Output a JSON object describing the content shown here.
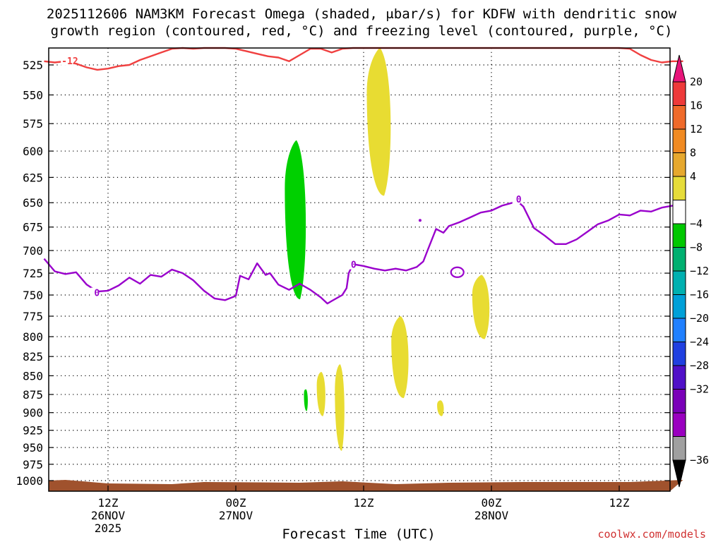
{
  "title_line1": "2025112606 NAM3KM Forecast Omega (shaded, μbar/s) for KDFW with dendritic snow",
  "title_line2": "growth region (contoured, red, °C) and freezing level (contoured, purple, °C)",
  "xlabel": "Forecast Time (UTC)",
  "credit": "coolwx.com/models",
  "chart_data": {
    "type": "area",
    "title": "2025112606 NAM3KM Forecast Omega (shaded, μbar/s) for KDFW with dendritic snow growth region (contoured, red, °C) and freezing level (contoured, purple, °C)",
    "xlabel": "Forecast Time (UTC)",
    "ylabel": "",
    "x_unit": "hours since 2025-11-26 06Z (forecast time)",
    "xlim": [
      0,
      60
    ],
    "ylim": [
      1000,
      500
    ],
    "y_scale": "log-pressure (inverted)",
    "grid": true,
    "x_ticks": [
      {
        "hour": 6,
        "lines": [
          "12Z",
          "26NOV",
          "2025"
        ]
      },
      {
        "hour": 18,
        "lines": [
          "00Z",
          "27NOV"
        ]
      },
      {
        "hour": 30,
        "lines": [
          "12Z",
          ""
        ]
      },
      {
        "hour": 42,
        "lines": [
          "00Z",
          "28NOV"
        ]
      },
      {
        "hour": 54,
        "lines": [
          "12Z",
          ""
        ]
      }
    ],
    "y_ticks": [
      525,
      550,
      575,
      600,
      625,
      650,
      675,
      700,
      725,
      750,
      775,
      800,
      825,
      850,
      875,
      900,
      925,
      950,
      975,
      1000
    ],
    "colorbar": {
      "unit": "μbar/s",
      "labels": [
        "20",
        "16",
        "12",
        "8",
        "4",
        "−4",
        "−8",
        "−12",
        "−16",
        "−20",
        "−24",
        "−28",
        "−32",
        "−36"
      ],
      "colors": [
        "#e8157a",
        "#ee3a3a",
        "#ef6a2a",
        "#f08a22",
        "#e6a82e",
        "#e6dc3a",
        "#ffffff",
        "#00c800",
        "#00b070",
        "#00b0b0",
        "#00a0d8",
        "#2080ff",
        "#2040e0",
        "#5010c8",
        "#7a00b8",
        "#9a00c0",
        "#a0a0a0",
        "#000000"
      ]
    },
    "series": [
      {
        "name": "Dendritic growth region (red, °C)",
        "contour_value": -12,
        "color": "#f04040",
        "points": [
          [
            0,
            522
          ],
          [
            1,
            523
          ],
          [
            2,
            522
          ],
          [
            3,
            524
          ],
          [
            4,
            527
          ],
          [
            5,
            529
          ],
          [
            6,
            528
          ],
          [
            7,
            526
          ],
          [
            8,
            525
          ],
          [
            9,
            521
          ],
          [
            10,
            518
          ],
          [
            11,
            515
          ],
          [
            12,
            512
          ],
          [
            13,
            511
          ],
          [
            14,
            512
          ],
          [
            15,
            510
          ],
          [
            16,
            511
          ],
          [
            17,
            510
          ],
          [
            18,
            512
          ],
          [
            19,
            514
          ],
          [
            20,
            516
          ],
          [
            21,
            518
          ],
          [
            22,
            519
          ],
          [
            23,
            522
          ],
          [
            24,
            517
          ],
          [
            25,
            512
          ],
          [
            26,
            512
          ],
          [
            27,
            515
          ],
          [
            28,
            512
          ],
          [
            29,
            511
          ],
          [
            30,
            511
          ],
          [
            31,
            511
          ],
          [
            32,
            511
          ],
          [
            33,
            511
          ],
          [
            34,
            511
          ],
          [
            35,
            511
          ],
          [
            36,
            511
          ],
          [
            37,
            511
          ],
          [
            38,
            511
          ],
          [
            39,
            511
          ],
          [
            40,
            511
          ],
          [
            41,
            511
          ],
          [
            42,
            511
          ],
          [
            43,
            511
          ],
          [
            44,
            511
          ],
          [
            45,
            511
          ],
          [
            46,
            511
          ],
          [
            47,
            511
          ],
          [
            48,
            511
          ],
          [
            49,
            511
          ],
          [
            50,
            511
          ],
          [
            51,
            511
          ],
          [
            52,
            511
          ],
          [
            53,
            511
          ],
          [
            54,
            511
          ],
          [
            55,
            512
          ],
          [
            56,
            517
          ],
          [
            57,
            521
          ],
          [
            58,
            523
          ],
          [
            59,
            522
          ],
          [
            60,
            522
          ]
        ]
      },
      {
        "name": "Freezing level (purple, °C)",
        "contour_value": 0,
        "color": "#9900cc",
        "points": [
          [
            0,
            709
          ],
          [
            1,
            723
          ],
          [
            2,
            726
          ],
          [
            3,
            724
          ],
          [
            4,
            738
          ],
          [
            5,
            746
          ],
          [
            6,
            745
          ],
          [
            7,
            739
          ],
          [
            8,
            730
          ],
          [
            9,
            737
          ],
          [
            10,
            727
          ],
          [
            11,
            729
          ],
          [
            12,
            721
          ],
          [
            13,
            725
          ],
          [
            14,
            733
          ],
          [
            15,
            745
          ],
          [
            16,
            754
          ],
          [
            17,
            756
          ],
          [
            18,
            751
          ],
          [
            18.4,
            728
          ],
          [
            19.2,
            732
          ],
          [
            20,
            714
          ],
          [
            20.8,
            727
          ],
          [
            21.2,
            725
          ],
          [
            22,
            738
          ],
          [
            23,
            744
          ],
          [
            24,
            737
          ],
          [
            25,
            744
          ],
          [
            26,
            753
          ],
          [
            26.6,
            760
          ],
          [
            27,
            757
          ],
          [
            28,
            750
          ],
          [
            28.4,
            742
          ],
          [
            28.6,
            725
          ],
          [
            29,
            715
          ],
          [
            30,
            717
          ],
          [
            31,
            720
          ],
          [
            32,
            722
          ],
          [
            33,
            720
          ],
          [
            34,
            722
          ],
          [
            35,
            718
          ],
          [
            35.6,
            712
          ],
          [
            36,
            700
          ],
          [
            36.8,
            677
          ],
          [
            37.5,
            681
          ],
          [
            38,
            674
          ],
          [
            39,
            670
          ],
          [
            40,
            665
          ],
          [
            41,
            660
          ],
          [
            42,
            658
          ],
          [
            43,
            653
          ],
          [
            44,
            650
          ],
          [
            44.6,
            650
          ],
          [
            45,
            654
          ],
          [
            46,
            676
          ],
          [
            47,
            684
          ],
          [
            48,
            693
          ],
          [
            49,
            693
          ],
          [
            50,
            688
          ],
          [
            51,
            680
          ],
          [
            52,
            672
          ],
          [
            53,
            668
          ],
          [
            54,
            662
          ],
          [
            55,
            663
          ],
          [
            56,
            658
          ],
          [
            57,
            659
          ],
          [
            58,
            655
          ],
          [
            59,
            653
          ],
          [
            60,
            655
          ]
        ]
      }
    ],
    "omega_regions": [
      {
        "value_range": [
          -12,
          -4
        ],
        "color": "#00d000",
        "time_range": [
          22.6,
          24.8
        ],
        "pressure_range": [
          590,
          755
        ]
      },
      {
        "value_range": [
          4,
          8
        ],
        "color": "#e8dc32",
        "time_range": [
          30.3,
          32.8
        ],
        "pressure_range": [
          510,
          643
        ]
      },
      {
        "value_range": [
          4,
          8
        ],
        "color": "#e8dc32",
        "time_range": [
          40.2,
          42
        ],
        "pressure_range": [
          727,
          803
        ]
      },
      {
        "value_range": [
          4,
          8
        ],
        "color": "#e8dc32",
        "time_range": [
          32.6,
          34.4
        ],
        "pressure_range": [
          775,
          880
        ]
      },
      {
        "value_range": [
          4,
          8
        ],
        "color": "#e8dc32",
        "time_range": [
          27.3,
          28.3
        ],
        "pressure_range": [
          835,
          955
        ]
      },
      {
        "value_range": [
          4,
          8
        ],
        "color": "#e8dc32",
        "time_range": [
          25.6,
          26.5
        ],
        "pressure_range": [
          845,
          905
        ]
      },
      {
        "value_range": [
          4,
          8
        ],
        "color": "#e8dc32",
        "time_range": [
          36.9,
          37.6
        ],
        "pressure_range": [
          883,
          905
        ]
      },
      {
        "value_range": [
          -12,
          -4
        ],
        "color": "#00d000",
        "time_range": [
          24.4,
          24.8
        ],
        "pressure_range": [
          868,
          898
        ]
      }
    ]
  }
}
